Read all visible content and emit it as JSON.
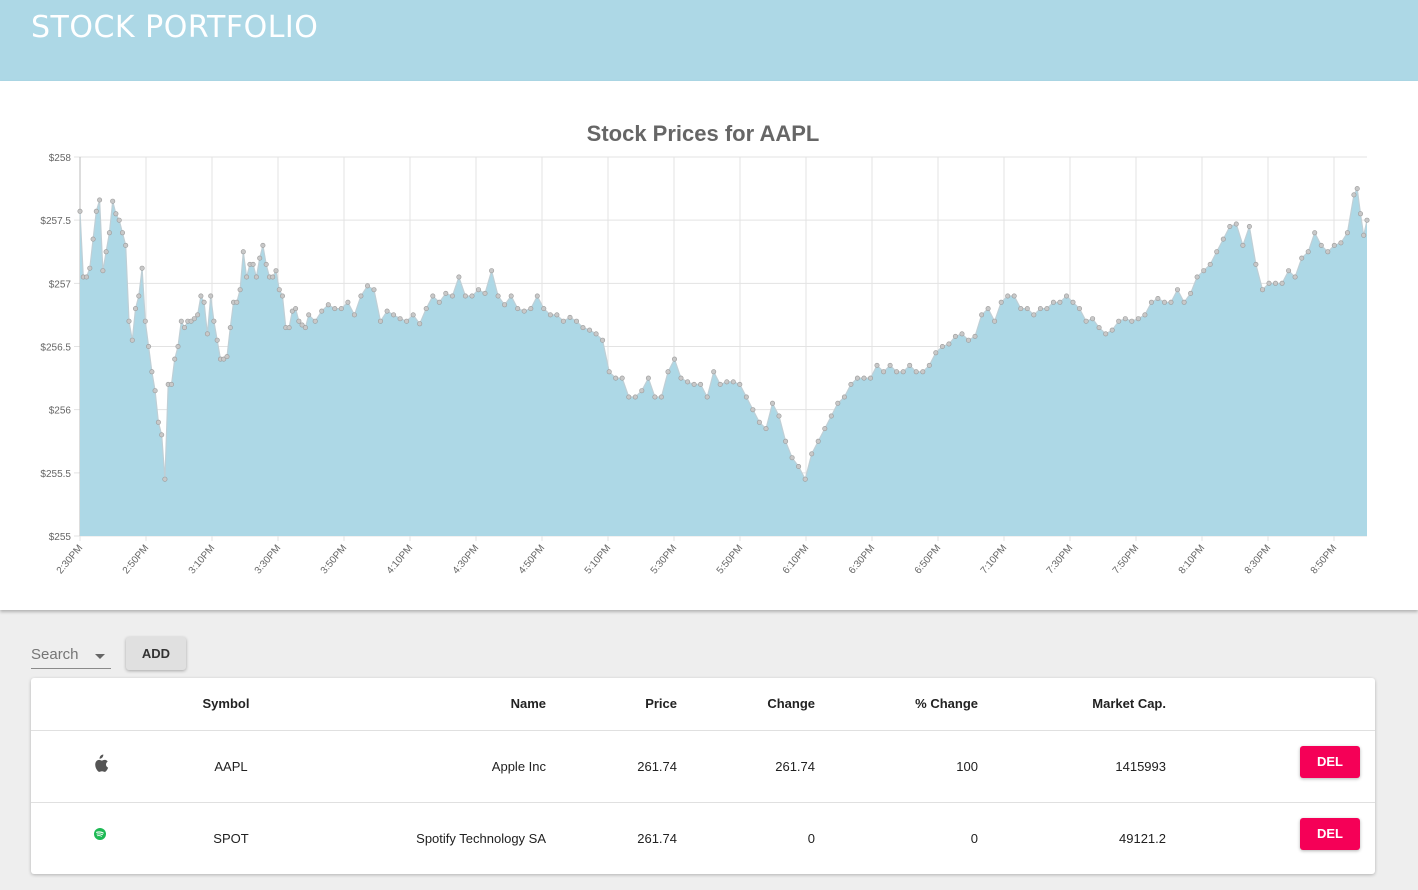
{
  "app": {
    "title": "STOCK PORTFOLIO"
  },
  "chart_data": {
    "type": "area",
    "title": "Stock Prices for AAPL",
    "yticks": [
      "$255",
      "$255.5",
      "$256",
      "$256.5",
      "$257",
      "$257.5",
      "$258"
    ],
    "ylim": [
      255,
      258
    ],
    "xticks": [
      "2:30PM",
      "2:50PM",
      "3:10PM",
      "3:30PM",
      "3:50PM",
      "4:10PM",
      "4:30PM",
      "4:50PM",
      "5:10PM",
      "5:30PM",
      "5:50PM",
      "6:10PM",
      "6:30PM",
      "6:50PM",
      "7:10PM",
      "7:30PM",
      "7:50PM",
      "8:10PM",
      "8:30PM",
      "8:50PM"
    ],
    "x_range_minutes": [
      0,
      394
    ],
    "grid": true,
    "fill_color": "#add8e6",
    "series": [
      {
        "values": [
          [
            0,
            257.57
          ],
          [
            1,
            257.05
          ],
          [
            2,
            257.05
          ],
          [
            3,
            257.12
          ],
          [
            4,
            257.35
          ],
          [
            5,
            257.57
          ],
          [
            6,
            257.66
          ],
          [
            7,
            257.1
          ],
          [
            8,
            257.25
          ],
          [
            9,
            257.4
          ],
          [
            10,
            257.65
          ],
          [
            11,
            257.55
          ],
          [
            12,
            257.5
          ],
          [
            13,
            257.4
          ],
          [
            14,
            257.3
          ],
          [
            15,
            256.7
          ],
          [
            16,
            256.55
          ],
          [
            17,
            256.8
          ],
          [
            18,
            256.9
          ],
          [
            19,
            257.12
          ],
          [
            20,
            256.7
          ],
          [
            21,
            256.5
          ],
          [
            22,
            256.3
          ],
          [
            23,
            256.15
          ],
          [
            24,
            255.9
          ],
          [
            25,
            255.8
          ],
          [
            26,
            255.45
          ],
          [
            27,
            256.2
          ],
          [
            28,
            256.2
          ],
          [
            29,
            256.4
          ],
          [
            30,
            256.5
          ],
          [
            31,
            256.7
          ],
          [
            32,
            256.65
          ],
          [
            33,
            256.7
          ],
          [
            34,
            256.7
          ],
          [
            35,
            256.72
          ],
          [
            36,
            256.75
          ],
          [
            37,
            256.9
          ],
          [
            38,
            256.85
          ],
          [
            39,
            256.6
          ],
          [
            40,
            256.9
          ],
          [
            41,
            256.7
          ],
          [
            42,
            256.55
          ],
          [
            43,
            256.4
          ],
          [
            44,
            256.4
          ],
          [
            45,
            256.42
          ],
          [
            46,
            256.65
          ],
          [
            47,
            256.85
          ],
          [
            48,
            256.85
          ],
          [
            49,
            256.95
          ],
          [
            50,
            257.25
          ],
          [
            51,
            257.05
          ],
          [
            52,
            257.15
          ],
          [
            53,
            257.15
          ],
          [
            54,
            257.05
          ],
          [
            55,
            257.2
          ],
          [
            56,
            257.3
          ],
          [
            57,
            257.15
          ],
          [
            58,
            257.05
          ],
          [
            59,
            257.05
          ],
          [
            60,
            257.1
          ],
          [
            61,
            256.95
          ],
          [
            62,
            256.9
          ],
          [
            63,
            256.65
          ],
          [
            64,
            256.65
          ],
          [
            65,
            256.78
          ],
          [
            66,
            256.8
          ],
          [
            67,
            256.7
          ],
          [
            68,
            256.67
          ],
          [
            69,
            256.65
          ],
          [
            70,
            256.75
          ],
          [
            72,
            256.7
          ],
          [
            74,
            256.78
          ],
          [
            76,
            256.83
          ],
          [
            78,
            256.8
          ],
          [
            80,
            256.8
          ],
          [
            82,
            256.85
          ],
          [
            84,
            256.75
          ],
          [
            86,
            256.9
          ],
          [
            88,
            256.98
          ],
          [
            90,
            256.95
          ],
          [
            92,
            256.7
          ],
          [
            94,
            256.78
          ],
          [
            96,
            256.75
          ],
          [
            98,
            256.72
          ],
          [
            100,
            256.7
          ],
          [
            102,
            256.75
          ],
          [
            104,
            256.68
          ],
          [
            106,
            256.8
          ],
          [
            108,
            256.9
          ],
          [
            110,
            256.85
          ],
          [
            112,
            256.92
          ],
          [
            114,
            256.9
          ],
          [
            116,
            257.05
          ],
          [
            118,
            256.9
          ],
          [
            120,
            256.9
          ],
          [
            122,
            256.95
          ],
          [
            124,
            256.92
          ],
          [
            126,
            257.1
          ],
          [
            128,
            256.9
          ],
          [
            130,
            256.83
          ],
          [
            132,
            256.9
          ],
          [
            134,
            256.8
          ],
          [
            136,
            256.78
          ],
          [
            138,
            256.8
          ],
          [
            140,
            256.9
          ],
          [
            142,
            256.8
          ],
          [
            144,
            256.75
          ],
          [
            146,
            256.75
          ],
          [
            148,
            256.7
          ],
          [
            150,
            256.73
          ],
          [
            152,
            256.7
          ],
          [
            154,
            256.65
          ],
          [
            156,
            256.63
          ],
          [
            158,
            256.6
          ],
          [
            160,
            256.55
          ],
          [
            162,
            256.3
          ],
          [
            164,
            256.25
          ],
          [
            166,
            256.25
          ],
          [
            168,
            256.1
          ],
          [
            170,
            256.1
          ],
          [
            172,
            256.15
          ],
          [
            174,
            256.25
          ],
          [
            176,
            256.1
          ],
          [
            178,
            256.1
          ],
          [
            180,
            256.3
          ],
          [
            182,
            256.4
          ],
          [
            184,
            256.25
          ],
          [
            186,
            256.22
          ],
          [
            188,
            256.2
          ],
          [
            190,
            256.2
          ],
          [
            192,
            256.1
          ],
          [
            194,
            256.3
          ],
          [
            196,
            256.2
          ],
          [
            198,
            256.22
          ],
          [
            200,
            256.22
          ],
          [
            202,
            256.2
          ],
          [
            204,
            256.1
          ],
          [
            206,
            256.0
          ],
          [
            208,
            255.9
          ],
          [
            210,
            255.85
          ],
          [
            212,
            256.05
          ],
          [
            214,
            255.95
          ],
          [
            216,
            255.75
          ],
          [
            218,
            255.62
          ],
          [
            220,
            255.55
          ],
          [
            222,
            255.45
          ],
          [
            224,
            255.65
          ],
          [
            226,
            255.75
          ],
          [
            228,
            255.85
          ],
          [
            230,
            255.95
          ],
          [
            232,
            256.05
          ],
          [
            234,
            256.1
          ],
          [
            236,
            256.2
          ],
          [
            238,
            256.25
          ],
          [
            240,
            256.25
          ],
          [
            242,
            256.25
          ],
          [
            244,
            256.35
          ],
          [
            246,
            256.3
          ],
          [
            248,
            256.35
          ],
          [
            250,
            256.3
          ],
          [
            252,
            256.3
          ],
          [
            254,
            256.35
          ],
          [
            256,
            256.3
          ],
          [
            258,
            256.3
          ],
          [
            260,
            256.35
          ],
          [
            262,
            256.45
          ],
          [
            264,
            256.5
          ],
          [
            266,
            256.52
          ],
          [
            268,
            256.58
          ],
          [
            270,
            256.6
          ],
          [
            272,
            256.55
          ],
          [
            274,
            256.58
          ],
          [
            276,
            256.75
          ],
          [
            278,
            256.8
          ],
          [
            280,
            256.7
          ],
          [
            282,
            256.85
          ],
          [
            284,
            256.9
          ],
          [
            286,
            256.9
          ],
          [
            288,
            256.8
          ],
          [
            290,
            256.8
          ],
          [
            292,
            256.75
          ],
          [
            294,
            256.8
          ],
          [
            296,
            256.8
          ],
          [
            298,
            256.85
          ],
          [
            300,
            256.85
          ],
          [
            302,
            256.9
          ],
          [
            304,
            256.85
          ],
          [
            306,
            256.8
          ],
          [
            308,
            256.7
          ],
          [
            310,
            256.72
          ],
          [
            312,
            256.65
          ],
          [
            314,
            256.6
          ],
          [
            316,
            256.63
          ],
          [
            318,
            256.7
          ],
          [
            320,
            256.72
          ],
          [
            322,
            256.7
          ],
          [
            324,
            256.72
          ],
          [
            326,
            256.75
          ],
          [
            328,
            256.85
          ],
          [
            330,
            256.88
          ],
          [
            332,
            256.85
          ],
          [
            334,
            256.85
          ],
          [
            336,
            256.95
          ],
          [
            338,
            256.85
          ],
          [
            340,
            256.92
          ],
          [
            342,
            257.05
          ],
          [
            344,
            257.1
          ],
          [
            346,
            257.15
          ],
          [
            348,
            257.25
          ],
          [
            350,
            257.35
          ],
          [
            352,
            257.45
          ],
          [
            354,
            257.47
          ],
          [
            356,
            257.3
          ],
          [
            358,
            257.45
          ],
          [
            360,
            257.15
          ],
          [
            362,
            256.95
          ],
          [
            364,
            257.0
          ],
          [
            366,
            257.0
          ],
          [
            368,
            257.0
          ],
          [
            370,
            257.1
          ],
          [
            372,
            257.05
          ],
          [
            374,
            257.2
          ],
          [
            376,
            257.25
          ],
          [
            378,
            257.4
          ],
          [
            380,
            257.3
          ],
          [
            382,
            257.25
          ],
          [
            384,
            257.3
          ],
          [
            386,
            257.32
          ],
          [
            388,
            257.4
          ],
          [
            390,
            257.7
          ],
          [
            391,
            257.75
          ],
          [
            392,
            257.55
          ],
          [
            393,
            257.38
          ],
          [
            394,
            257.5
          ]
        ]
      }
    ]
  },
  "search": {
    "placeholder": "Search"
  },
  "add_button": {
    "label": "ADD"
  },
  "table": {
    "headers": [
      "Symbol",
      "Name",
      "Price",
      "Change",
      "% Change",
      "Market Cap."
    ],
    "rows": [
      {
        "icon": "apple-icon",
        "symbol": "AAPL",
        "name": "Apple Inc",
        "price": "261.74",
        "change": "261.74",
        "pct_change": "100",
        "market_cap": "1415993",
        "delete_label": "DEL"
      },
      {
        "icon": "spotify-icon",
        "symbol": "SPOT",
        "name": "Spotify Technology SA",
        "price": "261.74",
        "change": "0",
        "pct_change": "0",
        "market_cap": "49121.2",
        "delete_label": "DEL"
      }
    ]
  },
  "colors": {
    "appbar": "#add8e6",
    "area_fill": "#add8e6",
    "delete_button": "#f50057",
    "spotify_green": "#1db954"
  }
}
